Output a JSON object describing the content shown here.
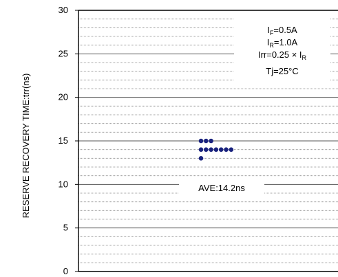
{
  "chart_data": {
    "type": "scatter",
    "ylabel": "RESERVE RECOVERY TIME:trr(ns)",
    "ylim": [
      0,
      30
    ],
    "yticks": [
      0,
      5,
      10,
      15,
      20,
      25,
      30
    ],
    "minor_gridline_step": 1,
    "grid": true,
    "marker_color": "#1a237e",
    "series": [
      {
        "points": [
          {
            "x": 1,
            "y": 15
          },
          {
            "x": 2,
            "y": 15
          },
          {
            "x": 3,
            "y": 15
          },
          {
            "x": 1,
            "y": 14
          },
          {
            "x": 2,
            "y": 14
          },
          {
            "x": 3,
            "y": 14
          },
          {
            "x": 4,
            "y": 14
          },
          {
            "x": 5,
            "y": 14
          },
          {
            "x": 6,
            "y": 14
          },
          {
            "x": 7,
            "y": 14
          },
          {
            "x": 1,
            "y": 13
          }
        ]
      }
    ],
    "average_label": "AVE:14.2ns",
    "conditions": {
      "if": {
        "base": "I",
        "sub": "F",
        "rest": "=0.5A"
      },
      "ir": {
        "base": "I",
        "sub": "R",
        "rest": "=1.0A"
      },
      "irr": {
        "base": "Irr=0.25 × I",
        "sub": "R",
        "rest": ""
      },
      "tj": "Tj=25°C"
    }
  }
}
